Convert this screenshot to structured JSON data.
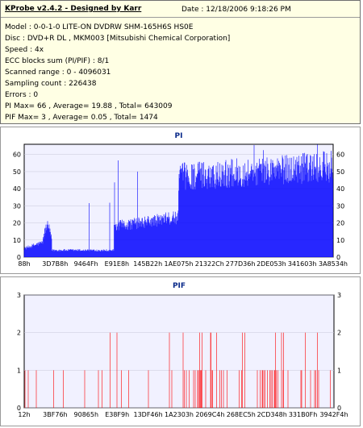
{
  "header": {
    "app_title": "KProbe v2.4.2 - Designed by Karr",
    "date": "Date : 12/18/2006 9:18:26 PM",
    "lines": [
      "Model : 0-0-1-0 LITE-ON DVDRW SHM-165H6S HS0E",
      "Disc : DVD+R DL , MKM003 [Mitsubishi Chemical Corporation]",
      "Speed : 4x",
      "ECC blocks sum (PI/PIF) : 8/1",
      "Scanned range : 0 - 4096031",
      "Sampling count : 226438",
      "Errors : 0",
      "PI Max= 66 , Average= 19.88 , Total= 643009",
      "PIF Max= 3 , Average= 0.05 , Total= 1474"
    ]
  },
  "chart_data": [
    {
      "type": "bar",
      "title": "PI",
      "color": "#0000ff",
      "ylim": [
        0,
        66
      ],
      "yticks": [
        0,
        10,
        20,
        30,
        40,
        50,
        60
      ],
      "xticks": [
        "88h",
        "3D7B8h",
        "9464Fh",
        "E91E8h",
        "145B22h",
        "1AE075h",
        "21322Ch",
        "277D36h",
        "2DE053h",
        "341603h",
        "3A8534h"
      ],
      "segments": [
        {
          "from": 0.0,
          "to": 0.06,
          "level": 6
        },
        {
          "from": 0.06,
          "to": 0.09,
          "level": 15
        },
        {
          "from": 0.09,
          "to": 0.29,
          "level": 4
        },
        {
          "from": 0.29,
          "to": 0.5,
          "level": 23
        },
        {
          "from": 0.5,
          "to": 1.0,
          "level": 52
        }
      ],
      "max": 66
    },
    {
      "type": "bar",
      "title": "PIF",
      "color": "#ff0000",
      "ylim": [
        0,
        3
      ],
      "yticks": [
        0,
        1,
        2,
        3
      ],
      "xticks": [
        "12h",
        "3BF76h",
        "90865h",
        "E38F9h",
        "13DF46h",
        "1A2303h",
        "2069C4h",
        "268EC5h",
        "2CD348h",
        "331B0Fh",
        "3942F4h"
      ],
      "max": 3
    }
  ]
}
